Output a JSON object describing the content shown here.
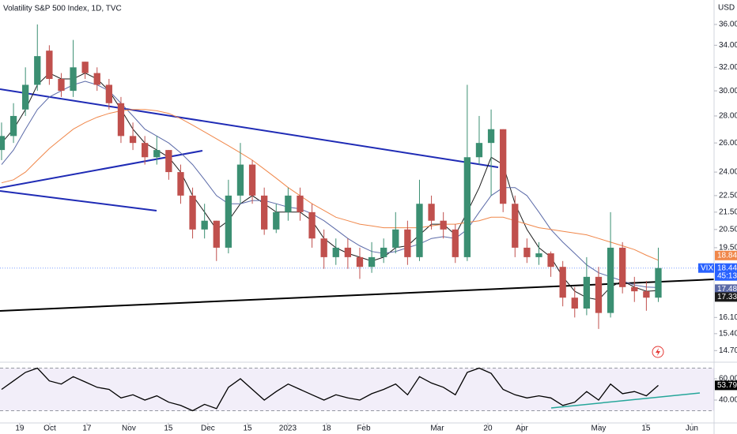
{
  "chart_data": {
    "type": "candlestick",
    "title": "Volatility S&P 500 Index, 1D, TVC",
    "currency": "USD",
    "log_scale": true,
    "up_color": "#3b8f72",
    "down_color": "#c0504d",
    "xlim": [
      -0.13,
      59.67
    ],
    "xticks": [
      {
        "value": 1.52,
        "label": "19"
      },
      {
        "value": 4.04,
        "label": "Oct"
      },
      {
        "value": 7.15,
        "label": "17"
      },
      {
        "value": 10.66,
        "label": "Nov"
      },
      {
        "value": 13.97,
        "label": "15"
      },
      {
        "value": 17.28,
        "label": "Dec"
      },
      {
        "value": 20.6,
        "label": "15"
      },
      {
        "value": 23.97,
        "label": "2023"
      },
      {
        "value": 27.22,
        "label": "18"
      },
      {
        "value": 30.33,
        "label": "Feb"
      },
      {
        "value": 36.49,
        "label": "Mar"
      },
      {
        "value": 40.73,
        "label": "20"
      },
      {
        "value": 43.58,
        "label": "Apr"
      },
      {
        "value": 50.0,
        "label": "May"
      },
      {
        "value": 53.97,
        "label": "15"
      },
      {
        "value": 57.81,
        "label": "Jun"
      }
    ],
    "ylim": [
      14.27,
      38.5
    ],
    "yticks": [
      {
        "value": 36,
        "label": "36.00"
      },
      {
        "value": 34,
        "label": "34.00"
      },
      {
        "value": 32,
        "label": "32.00"
      },
      {
        "value": 30,
        "label": "30.00"
      },
      {
        "value": 28,
        "label": "28.00"
      },
      {
        "value": 26,
        "label": "26.00"
      },
      {
        "value": 24,
        "label": "24.00"
      },
      {
        "value": 22.5,
        "label": "22.50"
      },
      {
        "value": 21.5,
        "label": "21.50"
      },
      {
        "value": 20.5,
        "label": "20.50"
      },
      {
        "value": 19.5,
        "label": "19.50"
      },
      {
        "value": 16.1,
        "label": "16.10"
      },
      {
        "value": 15.4,
        "label": "15.40"
      },
      {
        "value": 14.7,
        "label": "14.70"
      }
    ],
    "open": [
      25.5,
      26.5,
      28.5,
      30.5,
      33.5,
      31,
      30,
      32.5,
      31.5,
      30.5,
      29,
      26.5,
      26,
      25,
      25.5,
      24,
      22.5,
      20.5,
      21,
      19.5,
      22.5,
      24.5,
      22.5,
      20.5,
      21.5,
      22.5,
      21.5,
      20,
      19,
      19.5,
      19,
      18.5,
      19,
      19.5,
      20.5,
      19,
      22,
      21,
      20.5,
      19,
      25,
      26,
      27,
      22,
      19.5,
      19,
      19.2,
      18.5,
      17,
      16.5,
      18,
      16.3,
      19.5,
      17.5,
      17.3,
      17
    ],
    "high": [
      27.5,
      29,
      32,
      36,
      34,
      31.5,
      34.5,
      32.5,
      32,
      31,
      29.5,
      27.5,
      26.5,
      26.5,
      25.5,
      24.5,
      23,
      22,
      21,
      23.5,
      26,
      24.8,
      23,
      22,
      23,
      23,
      22,
      20.5,
      20,
      20,
      19.5,
      19.8,
      20,
      21.5,
      21,
      23.5,
      22.5,
      21.5,
      20.8,
      30.5,
      28,
      28.5,
      27,
      22.5,
      20,
      19.8,
      19.3,
      18.8,
      17.5,
      19,
      18.5,
      21.5,
      19.8,
      18,
      17.8,
      19.5
    ],
    "low": [
      24.8,
      26,
      28,
      30,
      30.5,
      29.5,
      29.5,
      31,
      30,
      28.5,
      26,
      25.5,
      24.5,
      24.5,
      23.5,
      22,
      20,
      20,
      18.8,
      19.2,
      22,
      22,
      20.2,
      20.3,
      21,
      21,
      19.5,
      18.4,
      18.6,
      18.4,
      17.9,
      18.2,
      18.7,
      19.2,
      18.6,
      18.8,
      20.5,
      20,
      18.7,
      18.8,
      24.5,
      22.5,
      21.5,
      19,
      18.7,
      18.6,
      18,
      16.6,
      16.1,
      16.2,
      15.6,
      16.1,
      17.2,
      16.8,
      16.4,
      16.8
    ],
    "close": [
      26.5,
      28,
      30.5,
      33,
      31,
      30,
      32,
      31.5,
      30.5,
      29,
      26.5,
      26,
      25,
      25.5,
      24,
      22.5,
      20.5,
      21,
      19.5,
      22.5,
      24.5,
      22.5,
      20.5,
      21.5,
      22.5,
      21.5,
      20,
      19,
      19.5,
      19,
      18.5,
      19,
      19.5,
      20.5,
      19,
      22,
      21,
      20.5,
      19,
      25,
      26,
      27,
      22,
      19.5,
      19,
      19.2,
      18.5,
      17,
      16.5,
      18,
      16.3,
      19.5,
      17.5,
      17.3,
      17,
      18.44
    ],
    "lines": [
      {
        "color": "#1b1b1b",
        "values": [
          26,
          27,
          28.5,
          30.5,
          31.5,
          31,
          31,
          31.5,
          31,
          30,
          28.5,
          27,
          26,
          25.5,
          25,
          24,
          22.5,
          21.5,
          20.5,
          21,
          22,
          22.5,
          22,
          21.5,
          21.5,
          21.5,
          21,
          20,
          19.5,
          19.2,
          19,
          18.8,
          19,
          19.5,
          19.6,
          20.2,
          20.8,
          20.8,
          20.2,
          21.5,
          23,
          25,
          24.5,
          22,
          20.5,
          19.5,
          19,
          18,
          17.3,
          17,
          16.9,
          17.5,
          17.8,
          17.5,
          17.3,
          17.33
        ]
      },
      {
        "color": "#5b6aa8",
        "values": [
          24.5,
          25.5,
          27,
          28.5,
          29.5,
          30,
          30.5,
          30.8,
          30.5,
          30,
          29,
          28,
          27,
          26.5,
          26,
          25.3,
          24.5,
          23.5,
          22.5,
          22,
          22,
          22.2,
          22.2,
          22,
          21.8,
          21.7,
          21.4,
          21,
          20.5,
          20,
          19.6,
          19.3,
          19.2,
          19.3,
          19.5,
          19.7,
          20,
          20.1,
          20,
          20.5,
          21.5,
          22.5,
          23,
          23,
          22.5,
          21.5,
          20.5,
          19.8,
          19.2,
          18.6,
          18.2,
          18,
          17.8,
          17.6,
          17.5,
          17.48
        ]
      },
      {
        "color": "#f0874a",
        "values": [
          23.3,
          23.5,
          24,
          24.8,
          25.6,
          26.3,
          27,
          27.5,
          27.9,
          28.2,
          28.4,
          28.5,
          28.5,
          28.4,
          28.2,
          27.8,
          27.3,
          26.8,
          26.3,
          25.8,
          25.3,
          24.8,
          24.2,
          23.6,
          23,
          22.5,
          22,
          21.6,
          21.2,
          21,
          20.8,
          20.7,
          20.6,
          20.6,
          20.6,
          20.6,
          20.7,
          20.8,
          20.8,
          20.9,
          21,
          21.2,
          21.2,
          21,
          20.8,
          20.6,
          20.5,
          20.4,
          20.3,
          20.2,
          20,
          19.8,
          19.6,
          19.4,
          19.1,
          18.84
        ]
      }
    ],
    "last_price": {
      "symbol": "VIX",
      "countdown": "45:13",
      "color": "#2962ff"
    },
    "rsi": {
      "color": "#000000",
      "ylim": [
        19.3,
        73.3
      ],
      "yticks": [
        {
          "value": 60,
          "label": "60.00"
        },
        {
          "value": 40,
          "label": "40.00"
        }
      ],
      "band": [
        30,
        70
      ],
      "values": [
        50,
        58,
        66,
        70,
        58,
        55,
        62,
        57,
        52,
        50,
        42,
        45,
        40,
        44,
        38,
        35,
        30,
        36,
        32,
        52,
        60,
        50,
        40,
        48,
        55,
        50,
        45,
        40,
        45,
        42,
        40,
        46,
        50,
        55,
        45,
        62,
        56,
        52,
        45,
        66,
        70,
        65,
        50,
        45,
        42,
        44,
        42,
        35,
        38,
        48,
        40,
        55,
        46,
        48,
        44,
        53.79
      ]
    }
  }
}
